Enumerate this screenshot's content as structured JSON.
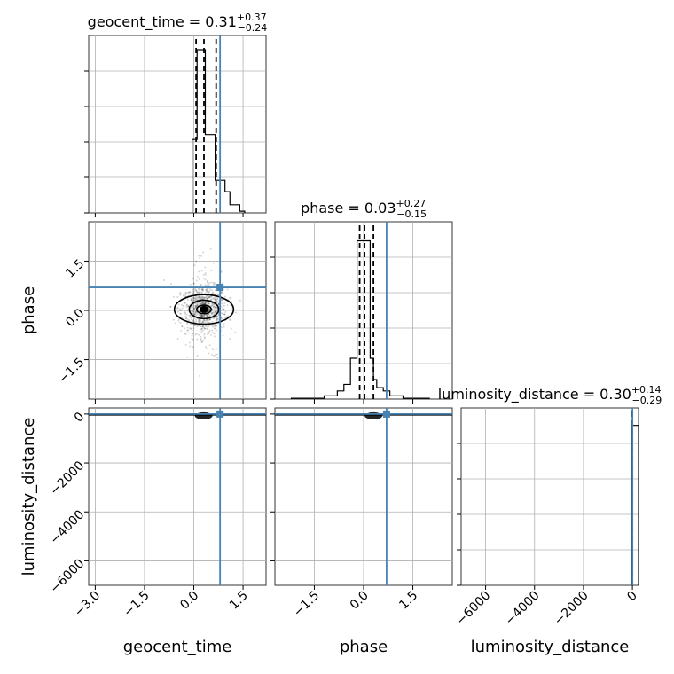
{
  "chart_data": {
    "type": "corner",
    "parameters": [
      "geocent_time",
      "phase",
      "luminosity_distance"
    ],
    "truths": {
      "geocent_time": 0.8,
      "phase": 0.7,
      "luminosity_distance": 0.3
    },
    "limits": {
      "geocent_time": [
        -3.2,
        2.2
      ],
      "phase": [
        -2.7,
        2.7
      ],
      "luminosity_distance": [
        -7000,
        250
      ]
    },
    "ticks": {
      "geocent_time": {
        "values": [
          -3.0,
          -1.5,
          0.0,
          1.5
        ],
        "labels": [
          "−3.0",
          "−1.5",
          "0.0",
          "1.5"
        ]
      },
      "phase": {
        "values": [
          -1.5,
          0.0,
          1.5
        ],
        "labels": [
          "−1.5",
          "0.0",
          "1.5"
        ]
      },
      "luminosity_distance": {
        "values": [
          -6000,
          -4000,
          -2000,
          0
        ],
        "labels": [
          "−6000",
          "−4000",
          "−2000",
          "0"
        ]
      }
    },
    "axis_labels": {
      "geocent_time": "geocent_time",
      "phase": "phase",
      "luminosity_distance": "luminosity_distance"
    },
    "titles": [
      {
        "param": "geocent_time",
        "text": "geocent_time = 0.31",
        "plus": "+0.37",
        "minus": "−0.24"
      },
      {
        "param": "phase",
        "text": "phase = 0.03",
        "plus": "+0.27",
        "minus": "−0.15"
      },
      {
        "param": "luminosity_distance",
        "text": "luminosity_distance = 0.30",
        "plus": "+0.14",
        "minus": "−0.29"
      }
    ],
    "histograms": {
      "geocent_time": {
        "edges": [
          -0.05,
          0.1,
          0.2,
          0.35,
          0.5,
          0.65,
          0.8,
          0.95,
          1.1,
          1.25,
          1.4,
          1.55
        ],
        "counts": [
          0.45,
          1.0,
          1.0,
          0.48,
          0.48,
          0.2,
          0.2,
          0.13,
          0.05,
          0.05,
          0.01
        ]
      },
      "phase": {
        "edges": [
          -2.2,
          -1.2,
          -0.8,
          -0.6,
          -0.4,
          -0.2,
          -0.1,
          0.0,
          0.1,
          0.2,
          0.3,
          0.4,
          0.6,
          0.8,
          1.2,
          2.0
        ],
        "counts": [
          0.005,
          0.02,
          0.05,
          0.09,
          0.25,
          0.97,
          0.97,
          0.97,
          0.97,
          0.25,
          0.12,
          0.07,
          0.05,
          0.02,
          0.005
        ]
      },
      "luminosity_distance": {
        "edges": [
          -30,
          0,
          60,
          250
        ],
        "counts": [
          0.98,
          0.98,
          0.98
        ]
      }
    },
    "quantiles": {
      "geocent_time": [
        0.07,
        0.31,
        0.68
      ],
      "phase": [
        -0.12,
        0.03,
        0.3
      ],
      "luminosity_distance": [
        0.01,
        0.3,
        0.44
      ]
    },
    "contours_2d": {
      "geocent_time|phase": {
        "center": [
          0.31,
          0.03
        ],
        "levels_halfwidth": [
          [
            0.22,
            0.13
          ],
          [
            0.45,
            0.28
          ],
          [
            0.9,
            0.45
          ]
        ]
      }
    },
    "grid": true
  }
}
